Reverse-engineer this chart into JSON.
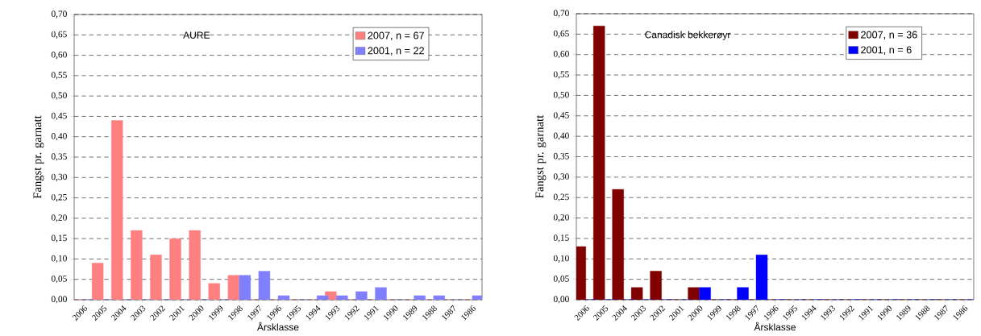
{
  "chart_data": [
    {
      "type": "bar",
      "title": "AURE",
      "xlabel": "Årsklasse",
      "ylabel": "Fangst pr. garnatt",
      "categories": [
        "2006",
        "2005",
        "2004",
        "2003",
        "2002",
        "2001",
        "2000",
        "1999",
        "1998",
        "1997",
        "1996",
        "1995",
        "1994",
        "1993",
        "1992",
        "1991",
        "1990",
        "1989",
        "1988",
        "1987",
        "1986"
      ],
      "series": [
        {
          "name": "2007, n = 67",
          "color": "#ff8080",
          "values": [
            0,
            0.09,
            0.44,
            0.17,
            0.11,
            0.15,
            0.17,
            0.04,
            0.06,
            0,
            0,
            0,
            0,
            0.02,
            0,
            0,
            0,
            0,
            0,
            0,
            0
          ]
        },
        {
          "name": "2001, n = 22",
          "color": "#8080ff",
          "values": [
            0,
            0,
            0,
            0,
            0,
            0,
            0,
            0,
            0.06,
            0.07,
            0.01,
            0,
            0.01,
            0.01,
            0.02,
            0.03,
            0,
            0.01,
            0.01,
            0,
            0.01
          ]
        }
      ],
      "ylim": [
        0,
        0.7
      ],
      "yticks": [
        {
          "value": 0,
          "label": "0,00"
        },
        {
          "value": 0.05,
          "label": "0,05"
        },
        {
          "value": 0.1,
          "label": "0,10"
        },
        {
          "value": 0.15,
          "label": "0,15"
        },
        {
          "value": 0.2,
          "label": "0,20"
        },
        {
          "value": 0.25,
          "label": "0,25"
        },
        {
          "value": 0.3,
          "label": "0,30"
        },
        {
          "value": 0.35,
          "label": "0,35"
        },
        {
          "value": 0.4,
          "label": "0,40"
        },
        {
          "value": 0.45,
          "label": "0,45"
        },
        {
          "value": 0.5,
          "label": "0,50"
        },
        {
          "value": 0.55,
          "label": "0,55"
        },
        {
          "value": 0.6,
          "label": "0,60"
        },
        {
          "value": 0.65,
          "label": "0,65"
        },
        {
          "value": 0.7,
          "label": "0,70"
        }
      ],
      "grid": "y",
      "legend": "top right"
    },
    {
      "type": "bar",
      "title": "Canadisk bekkerøyr",
      "xlabel": "Årsklasse",
      "ylabel": "Fangst pr. garnatt",
      "categories": [
        "2006",
        "2005",
        "2004",
        "2003",
        "2002",
        "2001",
        "2000",
        "1999",
        "1998",
        "1997",
        "1996",
        "1995",
        "1994",
        "1993",
        "1992",
        "1991",
        "1990",
        "1989",
        "1988",
        "1987",
        "1986"
      ],
      "series": [
        {
          "name": "2007, n = 36",
          "color": "#800000",
          "values": [
            0.13,
            0.67,
            0.27,
            0.03,
            0.07,
            0,
            0.03,
            0,
            0,
            0,
            0,
            0,
            0,
            0,
            0,
            0,
            0,
            0,
            0,
            0,
            0
          ]
        },
        {
          "name": "2001, n = 6",
          "color": "#0000ff",
          "values": [
            0,
            0,
            0,
            0,
            0,
            0,
            0.03,
            0,
            0.03,
            0.11,
            0,
            0,
            0,
            0,
            0,
            0,
            0,
            0,
            0,
            0,
            0
          ]
        }
      ],
      "ylim": [
        0,
        0.7
      ],
      "yticks": [
        {
          "value": 0,
          "label": "0,00"
        },
        {
          "value": 0.05,
          "label": "0,05"
        },
        {
          "value": 0.1,
          "label": "0,10"
        },
        {
          "value": 0.15,
          "label": "0,15"
        },
        {
          "value": 0.2,
          "label": "0,20"
        },
        {
          "value": 0.25,
          "label": "0,25"
        },
        {
          "value": 0.3,
          "label": "0,30"
        },
        {
          "value": 0.35,
          "label": "0,35"
        },
        {
          "value": 0.4,
          "label": "0,40"
        },
        {
          "value": 0.45,
          "label": "0,45"
        },
        {
          "value": 0.5,
          "label": "0,50"
        },
        {
          "value": 0.55,
          "label": "0,55"
        },
        {
          "value": 0.6,
          "label": "0,60"
        },
        {
          "value": 0.65,
          "label": "0,65"
        },
        {
          "value": 0.7,
          "label": "0,70"
        }
      ],
      "grid": "y",
      "legend": "top right"
    }
  ]
}
